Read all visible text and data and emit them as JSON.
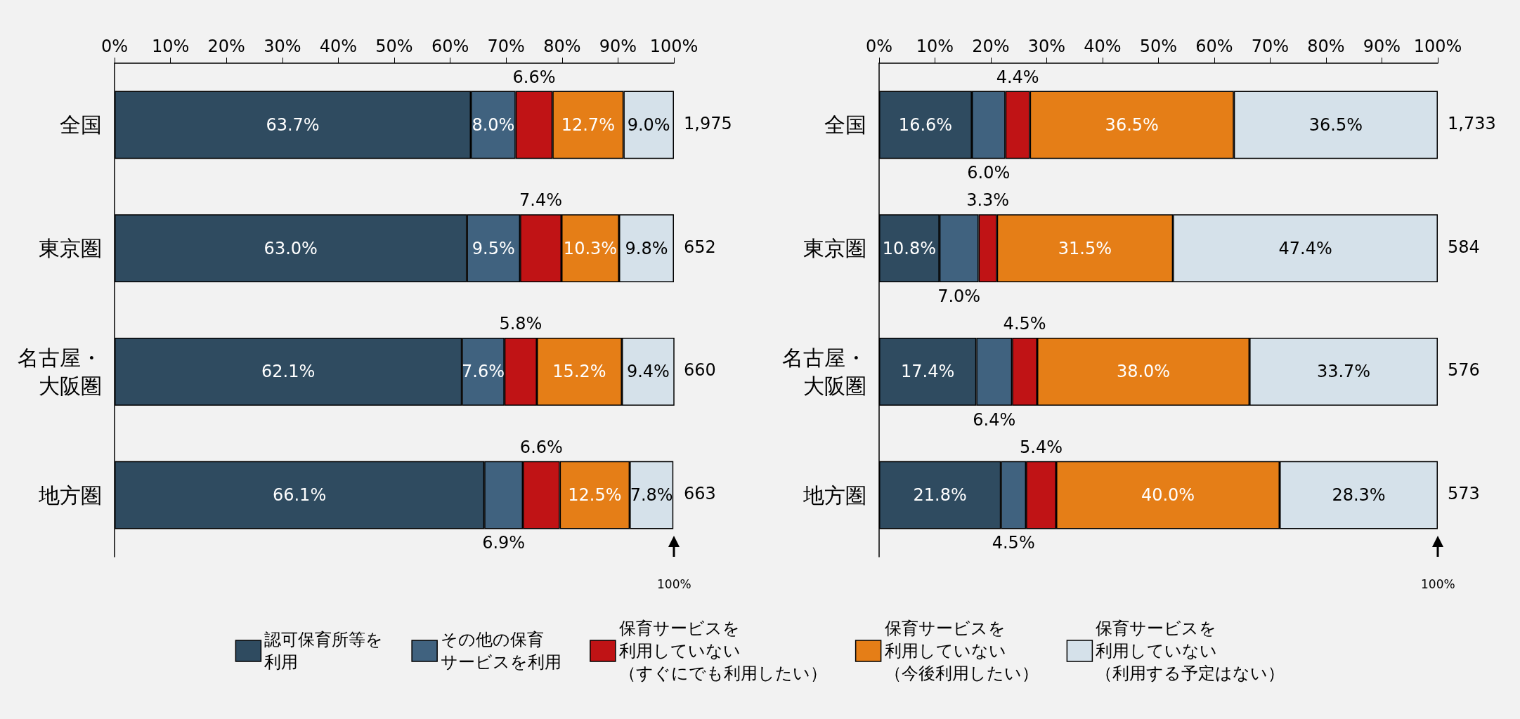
{
  "chart_data": [
    {
      "type": "bar",
      "orientation": "horizontal",
      "stacked": true,
      "categories": [
        "全国",
        "東京圏",
        "名古屋・大阪圏",
        "地方圏"
      ],
      "xlim": [
        0,
        100
      ],
      "xticks": [
        {
          "value": 0,
          "label": "0%"
        },
        {
          "value": 10,
          "label": "10%"
        },
        {
          "value": 20,
          "label": "20%"
        },
        {
          "value": 30,
          "label": "30%"
        },
        {
          "value": 40,
          "label": "40%"
        },
        {
          "value": 50,
          "label": "50%"
        },
        {
          "value": 60,
          "label": "60%"
        },
        {
          "value": 70,
          "label": "70%"
        },
        {
          "value": 80,
          "label": "80%"
        },
        {
          "value": 90,
          "label": "90%"
        },
        {
          "value": 100,
          "label": "100%"
        }
      ],
      "grid": false,
      "legend": "bottom",
      "series": [
        {
          "name": "認可保育所等を利用",
          "color": "#2f4b60",
          "values": [
            63.7,
            63.0,
            62.1,
            66.1
          ],
          "value_labels": [
            "63.7%",
            "63.0%",
            "62.1%",
            "66.1%"
          ]
        },
        {
          "name": "その他の保育サービスを利用",
          "color": "#40627f",
          "values": [
            8.0,
            9.5,
            7.6,
            6.9
          ],
          "value_labels": [
            "8.0%",
            "9.5%",
            "7.6%",
            "6.9%"
          ]
        },
        {
          "name": "保育サービスを利用していない（すぐにでも利用したい）",
          "color": "#c01315",
          "values": [
            6.6,
            7.4,
            5.8,
            6.6
          ],
          "value_labels": [
            "6.6%",
            "7.4%",
            "5.8%",
            "6.6%"
          ]
        },
        {
          "name": "保育サービスを利用していない（今後利用したい）",
          "color": "#e57e17",
          "values": [
            12.7,
            10.3,
            15.2,
            12.5
          ],
          "value_labels": [
            "12.7%",
            "10.3%",
            "15.2%",
            "12.5%"
          ]
        },
        {
          "name": "保育サービスを利用していない（利用する予定はない）",
          "color": "#d5e1ea",
          "values": [
            9.0,
            9.8,
            9.4,
            7.8
          ],
          "value_labels": [
            "9.0%",
            "9.8%",
            "9.4%",
            "7.8%"
          ]
        }
      ],
      "annotations": [
        "1,975",
        "652",
        "660",
        "663",
        "100%"
      ]
    },
    {
      "type": "bar",
      "orientation": "horizontal",
      "stacked": true,
      "categories": [
        "全国",
        "東京圏",
        "名古屋・大阪圏",
        "地方圏"
      ],
      "xlim": [
        0,
        100
      ],
      "xticks": [
        {
          "value": 0,
          "label": "0%"
        },
        {
          "value": 10,
          "label": "10%"
        },
        {
          "value": 20,
          "label": "20%"
        },
        {
          "value": 30,
          "label": "30%"
        },
        {
          "value": 40,
          "label": "40%"
        },
        {
          "value": 50,
          "label": "50%"
        },
        {
          "value": 60,
          "label": "60%"
        },
        {
          "value": 70,
          "label": "70%"
        },
        {
          "value": 80,
          "label": "80%"
        },
        {
          "value": 90,
          "label": "90%"
        },
        {
          "value": 100,
          "label": "100%"
        }
      ],
      "grid": false,
      "series": [
        {
          "color": "#2f4b60",
          "values": [
            16.6,
            10.8,
            17.4,
            21.8
          ],
          "value_labels": [
            "16.6%",
            "10.8%",
            "17.4%",
            "21.8%"
          ]
        },
        {
          "color": "#40627f",
          "values": [
            6.0,
            7.0,
            6.4,
            4.5
          ],
          "value_labels": [
            "6.0%",
            "7.0%",
            "6.4%",
            "4.5%"
          ]
        },
        {
          "color": "#c01315",
          "values": [
            4.4,
            3.3,
            4.5,
            5.4
          ],
          "value_labels": [
            "4.4%",
            "3.3%",
            "4.5%",
            "5.4%"
          ]
        },
        {
          "color": "#e57e17",
          "values": [
            36.5,
            31.5,
            38.0,
            40.0
          ],
          "value_labels": [
            "36.5%",
            "31.5%",
            "38.0%",
            "40.0%"
          ]
        },
        {
          "color": "#d5e1ea",
          "values": [
            36.5,
            47.4,
            33.7,
            28.3
          ],
          "value_labels": [
            "36.5%",
            "47.4%",
            "33.7%",
            "28.3%"
          ]
        }
      ],
      "annotations": [
        "1,733",
        "584",
        "576",
        "573",
        "100%"
      ]
    }
  ]
}
